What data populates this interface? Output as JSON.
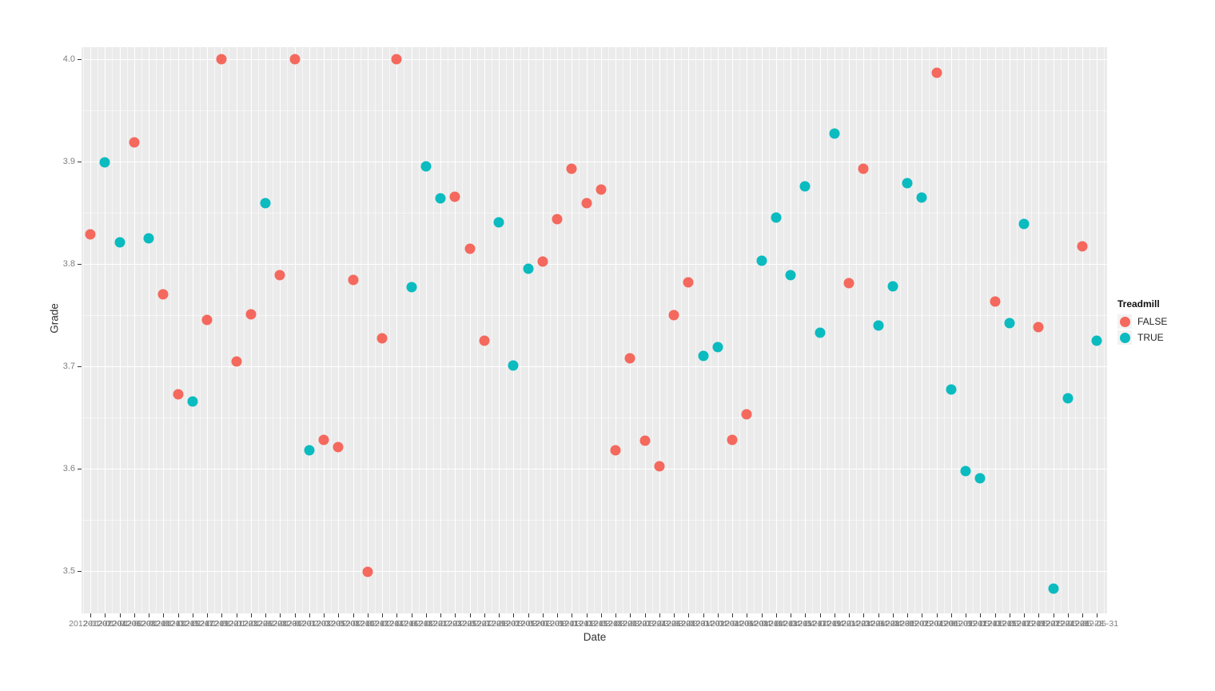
{
  "chart_data": {
    "type": "scatter",
    "title": "",
    "xlabel": "Date",
    "ylabel": "Grade",
    "legend_title": "Treadmill",
    "legend_position": "right",
    "grid": true,
    "panel_background": "#EBEBEB",
    "gridline_color": "#FFFFFF",
    "ylim": [
      3.46,
      4.01
    ],
    "y_ticks": [
      {
        "label": "4.0",
        "value": 4.0
      },
      {
        "label": "3.9",
        "value": 3.9
      },
      {
        "label": "3.8",
        "value": 3.8
      },
      {
        "label": "3.7",
        "value": 3.7
      },
      {
        "label": "3.6",
        "value": 3.6
      },
      {
        "label": "3.5",
        "value": 3.5
      }
    ],
    "x_categories": [
      "2012-01-02",
      "2012-01-04",
      "2012-01-06",
      "2012-01-08",
      "2012-01-10",
      "2012-01-13",
      "2012-01-15",
      "2012-01-17",
      "2012-01-19",
      "2012-01-21",
      "2012-01-23",
      "2012-01-26",
      "2012-01-28",
      "2012-01-30",
      "2012-02-01",
      "2012-02-03",
      "2012-02-05",
      "2012-02-08",
      "2012-02-10",
      "2012-02-12",
      "2012-02-14",
      "2012-02-16",
      "2012-02-18",
      "2012-02-21",
      "2012-02-23",
      "2012-02-25",
      "2012-02-27",
      "2012-02-29",
      "2012-03-02",
      "2012-03-05",
      "2012-03-07",
      "2012-03-09",
      "2012-03-11",
      "2012-03-13",
      "2012-03-15",
      "2012-03-18",
      "2012-03-20",
      "2012-03-22",
      "2012-03-24",
      "2012-03-26",
      "2012-03-28",
      "2012-03-31",
      "2012-04-02",
      "2012-04-04",
      "2012-04-06",
      "2012-04-08",
      "2012-04-10",
      "2012-04-13",
      "2012-04-15",
      "2012-04-17",
      "2012-04-19",
      "2012-04-21",
      "2012-04-23",
      "2012-04-26",
      "2012-04-28",
      "2012-04-30",
      "2012-05-02",
      "2012-05-04",
      "2012-05-06",
      "2012-05-09",
      "2012-05-11",
      "2012-05-13",
      "2012-05-15",
      "2012-05-17",
      "2012-05-19",
      "2012-05-22",
      "2012-05-24",
      "2012-05-26",
      "2012-05-28",
      "2012-05-31"
    ],
    "series": [
      {
        "name": "FALSE",
        "color": "#F4685D",
        "points": [
          {
            "date": "2012-01-02",
            "grade": 3.829
          },
          {
            "date": "2012-01-08",
            "grade": 3.919
          },
          {
            "date": "2012-01-13",
            "grade": 3.77
          },
          {
            "date": "2012-01-15",
            "grade": 3.673
          },
          {
            "date": "2012-01-19",
            "grade": 3.745
          },
          {
            "date": "2012-01-21",
            "grade": 4.0
          },
          {
            "date": "2012-01-23",
            "grade": 3.705
          },
          {
            "date": "2012-01-26",
            "grade": 3.751
          },
          {
            "date": "2012-01-30",
            "grade": 3.789
          },
          {
            "date": "2012-02-01",
            "grade": 4.0
          },
          {
            "date": "2012-02-05",
            "grade": 3.628
          },
          {
            "date": "2012-02-08",
            "grade": 3.621
          },
          {
            "date": "2012-02-10",
            "grade": 3.784
          },
          {
            "date": "2012-02-12",
            "grade": 3.499
          },
          {
            "date": "2012-02-14",
            "grade": 3.727
          },
          {
            "date": "2012-02-16",
            "grade": 4.0
          },
          {
            "date": "2012-02-25",
            "grade": 3.866
          },
          {
            "date": "2012-02-27",
            "grade": 3.815
          },
          {
            "date": "2012-02-29",
            "grade": 3.725
          },
          {
            "date": "2012-03-09",
            "grade": 3.802
          },
          {
            "date": "2012-03-11",
            "grade": 3.844
          },
          {
            "date": "2012-03-13",
            "grade": 3.893
          },
          {
            "date": "2012-03-15",
            "grade": 3.859
          },
          {
            "date": "2012-03-18",
            "grade": 3.873
          },
          {
            "date": "2012-03-20",
            "grade": 3.618
          },
          {
            "date": "2012-03-22",
            "grade": 3.708
          },
          {
            "date": "2012-03-24",
            "grade": 3.627
          },
          {
            "date": "2012-03-26",
            "grade": 3.602
          },
          {
            "date": "2012-03-28",
            "grade": 3.75
          },
          {
            "date": "2012-03-31",
            "grade": 3.782
          },
          {
            "date": "2012-04-06",
            "grade": 3.628
          },
          {
            "date": "2012-04-08",
            "grade": 3.653
          },
          {
            "date": "2012-04-23",
            "grade": 3.781
          },
          {
            "date": "2012-04-26",
            "grade": 3.893
          },
          {
            "date": "2012-05-06",
            "grade": 3.987
          },
          {
            "date": "2012-05-15",
            "grade": 3.763
          },
          {
            "date": "2012-05-22",
            "grade": 3.738
          },
          {
            "date": "2012-05-28",
            "grade": 3.817
          }
        ]
      },
      {
        "name": "TRUE",
        "color": "#0ABBBF",
        "points": [
          {
            "date": "2012-01-04",
            "grade": 3.899
          },
          {
            "date": "2012-01-06",
            "grade": 3.821
          },
          {
            "date": "2012-01-10",
            "grade": 3.825
          },
          {
            "date": "2012-01-17",
            "grade": 3.666
          },
          {
            "date": "2012-01-28",
            "grade": 3.859
          },
          {
            "date": "2012-02-03",
            "grade": 3.618
          },
          {
            "date": "2012-02-18",
            "grade": 3.777
          },
          {
            "date": "2012-02-21",
            "grade": 3.895
          },
          {
            "date": "2012-02-23",
            "grade": 3.864
          },
          {
            "date": "2012-03-02",
            "grade": 3.841
          },
          {
            "date": "2012-03-05",
            "grade": 3.701
          },
          {
            "date": "2012-03-07",
            "grade": 3.795
          },
          {
            "date": "2012-04-02",
            "grade": 3.71
          },
          {
            "date": "2012-04-04",
            "grade": 3.719
          },
          {
            "date": "2012-04-10",
            "grade": 3.803
          },
          {
            "date": "2012-04-13",
            "grade": 3.845
          },
          {
            "date": "2012-04-15",
            "grade": 3.789
          },
          {
            "date": "2012-04-17",
            "grade": 3.876
          },
          {
            "date": "2012-04-19",
            "grade": 3.733
          },
          {
            "date": "2012-04-21",
            "grade": 3.927
          },
          {
            "date": "2012-04-28",
            "grade": 3.74
          },
          {
            "date": "2012-04-30",
            "grade": 3.778
          },
          {
            "date": "2012-05-02",
            "grade": 3.879
          },
          {
            "date": "2012-05-04",
            "grade": 3.865
          },
          {
            "date": "2012-05-09",
            "grade": 3.677
          },
          {
            "date": "2012-05-11",
            "grade": 3.598
          },
          {
            "date": "2012-05-13",
            "grade": 3.591
          },
          {
            "date": "2012-05-17",
            "grade": 3.742
          },
          {
            "date": "2012-05-19",
            "grade": 3.839
          },
          {
            "date": "2012-05-24",
            "grade": 3.483
          },
          {
            "date": "2012-05-26",
            "grade": 3.669
          },
          {
            "date": "2012-05-31",
            "grade": 3.725
          }
        ]
      }
    ]
  },
  "legend": {
    "title": "Treadmill",
    "entries": [
      {
        "label": "FALSE",
        "color": "#F4685D"
      },
      {
        "label": "TRUE",
        "color": "#0ABBBF"
      }
    ]
  },
  "axes": {
    "x_title": "Date",
    "y_title": "Grade"
  }
}
